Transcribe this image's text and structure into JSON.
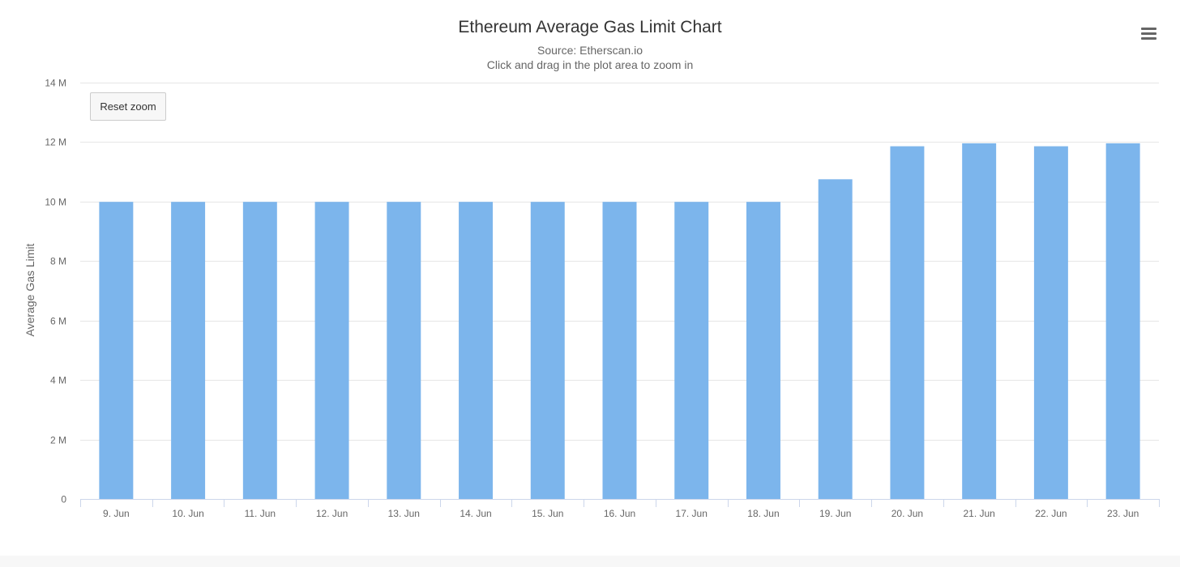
{
  "chart_menu": {
    "icon": "hamburger-menu-icon"
  },
  "reset_zoom": {
    "label": "Reset zoom"
  },
  "chart_data": {
    "type": "bar",
    "title": "Ethereum Average Gas Limit Chart",
    "subtitle": [
      "Source: Etherscan.io",
      "Click and drag in the plot area to zoom in"
    ],
    "xlabel": "",
    "ylabel": "Average Gas Limit",
    "categories": [
      "9. Jun",
      "10. Jun",
      "11. Jun",
      "12. Jun",
      "13. Jun",
      "14. Jun",
      "15. Jun",
      "16. Jun",
      "17. Jun",
      "18. Jun",
      "19. Jun",
      "20. Jun",
      "21. Jun",
      "22. Jun",
      "23. Jun"
    ],
    "values": [
      9990000,
      9990000,
      9990000,
      9990000,
      9990000,
      9990000,
      9990000,
      9990000,
      9990000,
      9990000,
      10750000,
      11860000,
      11960000,
      11860000,
      11960000
    ],
    "ylim": [
      0,
      14000000
    ],
    "yticks": [
      0,
      2000000,
      4000000,
      6000000,
      8000000,
      10000000,
      12000000,
      14000000
    ],
    "ytick_labels": [
      "0",
      "2 M",
      "4 M",
      "6 M",
      "8 M",
      "10 M",
      "12 M",
      "14 M"
    ],
    "grid": true,
    "legend": "none",
    "bar_color": "#7cb5ec",
    "grid_color": "#e6e6e6",
    "axis_color": "#ccd6eb"
  }
}
